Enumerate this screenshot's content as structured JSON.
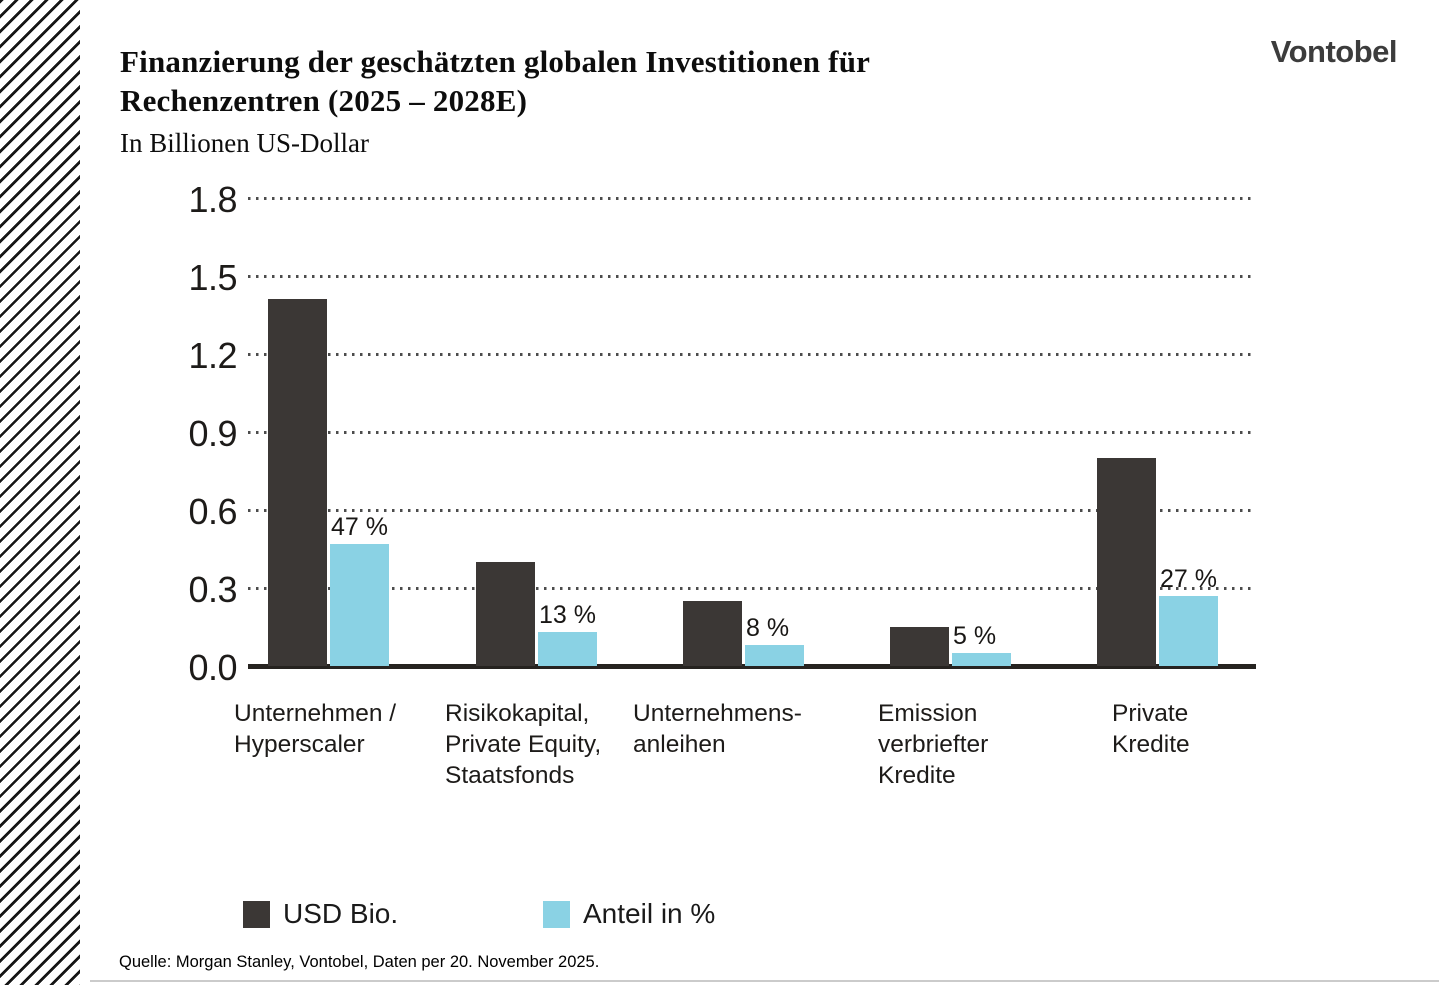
{
  "page": {
    "logo": "Vontobel",
    "source": "Quelle: Morgan Stanley, Vontobel, Daten per 20. November 2025."
  },
  "header": {
    "title_line1": "Finanzierung der geschätzten globalen Investitionen für",
    "title_line2": "Rechenzentren (2025 – 2028E)",
    "subtitle": "In Billionen US-Dollar"
  },
  "legend": {
    "usd_label": "USD Bio.",
    "share_label": "Anteil in %"
  },
  "colors": {
    "bar_dark": "#3b3735",
    "bar_blue": "#8ad2e4",
    "grid_dots": "#4c4c4c",
    "axis_line": "#262320"
  },
  "chart_data": {
    "type": "bar",
    "title": "Finanzierung der geschätzten globalen Investitionen für Rechenzentren (2025 – 2028E)",
    "subtitle": "In Billionen US-Dollar",
    "categories": [
      [
        "Unternehmen /",
        "Hyperscaler"
      ],
      [
        "Risikokapital,",
        "Private Equity,",
        "Staatsfonds"
      ],
      [
        "Unternehmens-",
        "anleihen"
      ],
      [
        "Emission",
        "verbriefter",
        "Kredite"
      ],
      [
        "Private",
        "Kredite"
      ]
    ],
    "series": [
      {
        "name": "USD Bio.",
        "values": [
          1.41,
          0.4,
          0.25,
          0.15,
          0.8
        ]
      },
      {
        "name": "Anteil in %",
        "values": [
          0.47,
          0.13,
          0.08,
          0.05,
          0.27
        ],
        "labels": [
          "47 %",
          "13 %",
          "8 %",
          "5 %",
          "27 %"
        ]
      }
    ],
    "yticks": [
      "1.8",
      "1.5",
      "1.2",
      "0.9",
      "0.6",
      "0.3",
      "0.0"
    ],
    "ylim": [
      0,
      1.8
    ],
    "ylabel": "",
    "xlabel": "",
    "grid": "dotted-horizontal",
    "legend_position": "bottom"
  }
}
